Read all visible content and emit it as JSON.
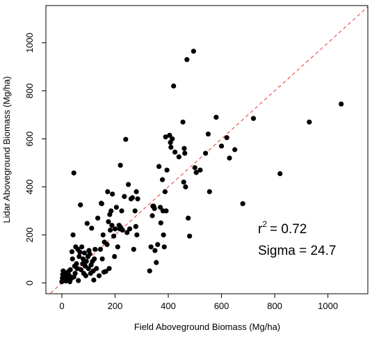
{
  "chart_data": {
    "type": "scatter",
    "title": "",
    "xlabel": "Field Aboveground Biomass (Mg/ha)",
    "ylabel": "Lidar Aboveground Biomass (Mg/ha)",
    "xlim": [
      -60,
      1150
    ],
    "ylim": [
      -45,
      1155
    ],
    "xticks": [
      0,
      200,
      400,
      600,
      800,
      1000
    ],
    "yticks": [
      0,
      200,
      400,
      600,
      800,
      1000
    ],
    "reference_line": {
      "type": "1:1",
      "color": "#e8483c",
      "style": "dashed"
    },
    "annotations": {
      "r2_prefix": "r",
      "r2_sup": "2",
      "r2_value": "= 0.72",
      "sigma": "Sigma = 24.7"
    },
    "point_color": "#000000",
    "points": [
      [
        0,
        5
      ],
      [
        2,
        20
      ],
      [
        3,
        35
      ],
      [
        5,
        50
      ],
      [
        8,
        12
      ],
      [
        10,
        28
      ],
      [
        12,
        42
      ],
      [
        15,
        8
      ],
      [
        18,
        22
      ],
      [
        20,
        38
      ],
      [
        22,
        15
      ],
      [
        25,
        48
      ],
      [
        28,
        30
      ],
      [
        30,
        5
      ],
      [
        32,
        55
      ],
      [
        35,
        18
      ],
      [
        38,
        130
      ],
      [
        40,
        100
      ],
      [
        42,
        200
      ],
      [
        45,
        25
      ],
      [
        45,
        458
      ],
      [
        48,
        70
      ],
      [
        50,
        40
      ],
      [
        52,
        150
      ],
      [
        55,
        80
      ],
      [
        58,
        60
      ],
      [
        60,
        140
      ],
      [
        62,
        10
      ],
      [
        65,
        110
      ],
      [
        68,
        128
      ],
      [
        70,
        325
      ],
      [
        72,
        55
      ],
      [
        75,
        150
      ],
      [
        78,
        80
      ],
      [
        80,
        100
      ],
      [
        82,
        40
      ],
      [
        85,
        125
      ],
      [
        88,
        70
      ],
      [
        90,
        30
      ],
      [
        92,
        90
      ],
      [
        95,
        248
      ],
      [
        98,
        110
      ],
      [
        100,
        60
      ],
      [
        102,
        135
      ],
      [
        105,
        120
      ],
      [
        108,
        40
      ],
      [
        110,
        75
      ],
      [
        112,
        228
      ],
      [
        115,
        90
      ],
      [
        118,
        50
      ],
      [
        120,
        12
      ],
      [
        122,
        100
      ],
      [
        125,
        140
      ],
      [
        130,
        60
      ],
      [
        135,
        270
      ],
      [
        140,
        30
      ],
      [
        145,
        140
      ],
      [
        148,
        332
      ],
      [
        150,
        330
      ],
      [
        152,
        100
      ],
      [
        155,
        200
      ],
      [
        158,
        45
      ],
      [
        160,
        170
      ],
      [
        165,
        48
      ],
      [
        170,
        160
      ],
      [
        172,
        380
      ],
      [
        175,
        255
      ],
      [
        178,
        60
      ],
      [
        180,
        285
      ],
      [
        182,
        220
      ],
      [
        185,
        300
      ],
      [
        188,
        240
      ],
      [
        190,
        370
      ],
      [
        195,
        195
      ],
      [
        198,
        110
      ],
      [
        200,
        225
      ],
      [
        205,
        315
      ],
      [
        210,
        150
      ],
      [
        215,
        240
      ],
      [
        218,
        225
      ],
      [
        220,
        490
      ],
      [
        222,
        230
      ],
      [
        225,
        300
      ],
      [
        228,
        220
      ],
      [
        235,
        360
      ],
      [
        240,
        598
      ],
      [
        245,
        210
      ],
      [
        250,
        410
      ],
      [
        255,
        225
      ],
      [
        260,
        350
      ],
      [
        265,
        355
      ],
      [
        270,
        140
      ],
      [
        275,
        300
      ],
      [
        278,
        235
      ],
      [
        280,
        380
      ],
      [
        282,
        200
      ],
      [
        285,
        350
      ],
      [
        330,
        50
      ],
      [
        335,
        150
      ],
      [
        340,
        280
      ],
      [
        342,
        320
      ],
      [
        345,
        320
      ],
      [
        348,
        310
      ],
      [
        350,
        135
      ],
      [
        355,
        85
      ],
      [
        360,
        160
      ],
      [
        365,
        485
      ],
      [
        370,
        315
      ],
      [
        372,
        250
      ],
      [
        378,
        430
      ],
      [
        380,
        300
      ],
      [
        382,
        200
      ],
      [
        385,
        150
      ],
      [
        388,
        380
      ],
      [
        390,
        608
      ],
      [
        392,
        300
      ],
      [
        395,
        470
      ],
      [
        405,
        615
      ],
      [
        408,
        585
      ],
      [
        410,
        565
      ],
      [
        415,
        600
      ],
      [
        420,
        820
      ],
      [
        425,
        545
      ],
      [
        440,
        525
      ],
      [
        455,
        670
      ],
      [
        458,
        420
      ],
      [
        460,
        560
      ],
      [
        462,
        540
      ],
      [
        465,
        400
      ],
      [
        470,
        930
      ],
      [
        475,
        270
      ],
      [
        480,
        195
      ],
      [
        495,
        965
      ],
      [
        500,
        480
      ],
      [
        505,
        460
      ],
      [
        520,
        470
      ],
      [
        540,
        540
      ],
      [
        550,
        620
      ],
      [
        555,
        380
      ],
      [
        580,
        690
      ],
      [
        600,
        570
      ],
      [
        620,
        605
      ],
      [
        630,
        520
      ],
      [
        650,
        555
      ],
      [
        680,
        330
      ],
      [
        720,
        685
      ],
      [
        820,
        455
      ],
      [
        930,
        670
      ],
      [
        1050,
        745
      ]
    ]
  }
}
